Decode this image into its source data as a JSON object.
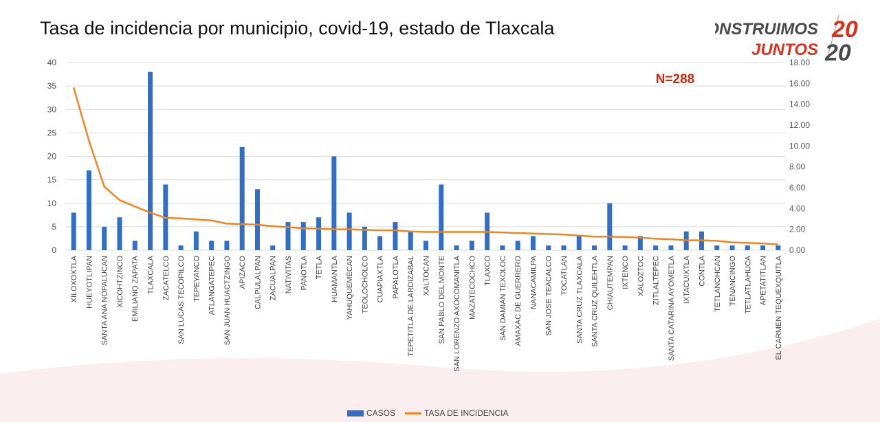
{
  "title": "Tasa de incidencia por municipio, covid-19, estado de Tlaxcala",
  "logo": {
    "line1": "CONSTRUIMOS",
    "line2": "JUNTOS",
    "year_top": "20",
    "year_bottom": "20"
  },
  "annotation": "N=288",
  "colors": {
    "bars": "#2f6fca",
    "line": "#f0841f",
    "annotation": "#c8290e",
    "logo_gray": "#4a4a4a",
    "logo_red": "#d9311b"
  },
  "chart_data": {
    "type": "bar+line",
    "title": "Tasa de incidencia por municipio, covid-19, estado de Tlaxcala",
    "categories": [
      "XILOXOXTLA",
      "HUEYOTLIPAN",
      "SANTA ANA NOPALUCAN",
      "XICOHTZINCO",
      "EMILIANO ZAPATA",
      "TLAXCALA",
      "ZACATELCO",
      "SAN LUCAS TECOPILCO",
      "TEPEYANCO",
      "ATLANGATEPEC",
      "SAN JUAN HUACTZINGO",
      "APIZACO",
      "CALPULALPAN",
      "ZACUALPAN",
      "NATIVITAS",
      "PANOTLA",
      "TETLA",
      "HUAMANTLA",
      "YAHUQUEMECAN",
      "TEOLOCHOLCO",
      "CUAPIAXTLA",
      "PAPALOTLA",
      "TEPETITLA DE LARDIZABAL",
      "XALTOCAN",
      "SAN PABLO DEL MONTE",
      "SAN LORENZO AXOCOMANITLA",
      "MAZATECOCHCO",
      "TLAXCO",
      "SAN DAMIAN TEXOLOC",
      "AMAXAC DE GUERRERO",
      "NANACAMILPA",
      "SAN JOSE TEACALCO",
      "TOCATLAN",
      "SANTA CRUZ TLAXCALA",
      "SANTA CRUZ QUILEHTLA",
      "CHIAUTEMPAN",
      "IXTENCO",
      "XALOZTOC",
      "ZITLALTEPEC",
      "SANTA CATARINA AYOMETLA",
      "IXTACUIXTLA",
      "CONTLA",
      "TETLANOHCAN",
      "TENANCINGO",
      "TETLATLAHUCA",
      "APETATITLAN",
      "EL CARMEN TEQUEXQUITLA"
    ],
    "series": [
      {
        "name": "CASOS",
        "type": "bar",
        "axis": "left",
        "values": [
          8,
          17,
          5,
          7,
          2,
          38,
          14,
          1,
          4,
          2,
          2,
          22,
          13,
          1,
          6,
          6,
          7,
          20,
          8,
          5,
          3,
          6,
          4,
          2,
          14,
          1,
          2,
          8,
          1,
          2,
          3,
          1,
          1,
          3,
          1,
          10,
          1,
          3,
          1,
          1,
          4,
          4,
          1,
          1,
          1,
          1,
          1
        ]
      },
      {
        "name": "TASA DE INCIDENCIA",
        "type": "line",
        "axis": "right",
        "values": [
          15.6,
          10.5,
          6.1,
          4.8,
          4.2,
          3.6,
          3.1,
          3.05,
          2.95,
          2.85,
          2.55,
          2.5,
          2.45,
          2.3,
          2.2,
          2.1,
          2.05,
          2.0,
          2.0,
          1.95,
          1.9,
          1.9,
          1.8,
          1.75,
          1.75,
          1.75,
          1.75,
          1.75,
          1.7,
          1.65,
          1.6,
          1.55,
          1.5,
          1.4,
          1.3,
          1.3,
          1.25,
          1.2,
          1.1,
          1.05,
          0.95,
          0.95,
          0.9,
          0.75,
          0.7,
          0.65,
          0.55
        ]
      }
    ],
    "y_left": {
      "range": [
        0,
        40
      ],
      "ticks": [
        "0",
        "5",
        "10",
        "15",
        "20",
        "25",
        "30",
        "35",
        "40"
      ]
    },
    "y_right": {
      "range": [
        0,
        18
      ],
      "ticks": [
        "0.00",
        "2.00",
        "4.00",
        "6.00",
        "8.00",
        "10.00",
        "12.00",
        "14.00",
        "16.00",
        "18.00"
      ]
    },
    "grid": true,
    "legend": "bottom"
  }
}
